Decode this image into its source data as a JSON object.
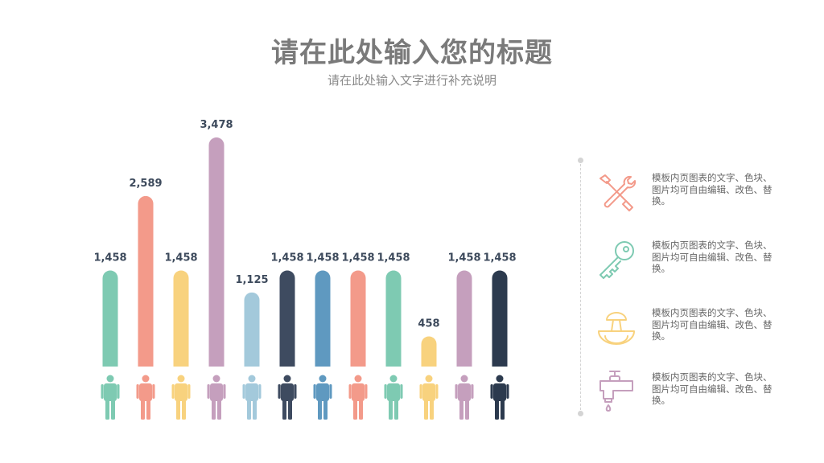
{
  "header": {
    "title": "请在此处输入您的标题",
    "subtitle": "请在此处输入文字进行补充说明"
  },
  "chart_data": {
    "type": "bar",
    "values": [
      1458,
      2589,
      1458,
      3478,
      1125,
      1458,
      1458,
      1458,
      1458,
      458,
      1458,
      1458
    ],
    "labels": [
      "1,458",
      "2,589",
      "1,458",
      "3,478",
      "1,125",
      "1,458",
      "1,458",
      "1,458",
      "1,458",
      "458",
      "1,458",
      "1,458"
    ],
    "colors": [
      "#7ecab2",
      "#f39a8a",
      "#f8d27e",
      "#c59fbd",
      "#a3c9db",
      "#3e4b60",
      "#5f99c0",
      "#f39a8a",
      "#7ecab2",
      "#f8d27e",
      "#c59fbd",
      "#2c3a4e"
    ],
    "grid": false,
    "legend": "none"
  },
  "side_panel": {
    "items": [
      {
        "icon": "tools-icon",
        "color": "#f39a8a",
        "text": "模板内页图表的文字、色块、图片均可自由编辑、改色、替换。"
      },
      {
        "icon": "key-icon",
        "color": "#7ecab2",
        "text": "模板内页图表的文字、色块、图片均可自由编辑、改色、替换。"
      },
      {
        "icon": "mushroom-bowl-icon",
        "color": "#f8d27e",
        "text": "模板内页图表的文字、色块、图片均可自由编辑、改色、替换。"
      },
      {
        "icon": "faucet-icon",
        "color": "#c59fbd",
        "text": "模板内页图表的文字、色块、图片均可自由编辑、改色、替换。"
      }
    ]
  }
}
